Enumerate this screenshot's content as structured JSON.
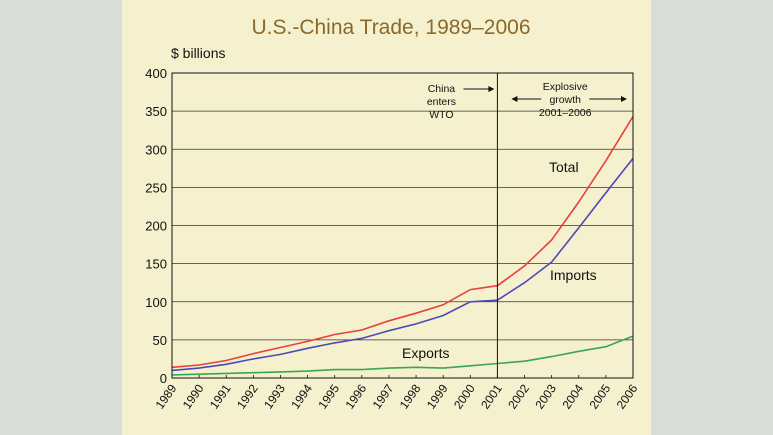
{
  "chart_data": {
    "type": "line",
    "title": "U.S.-China Trade, 1989–2006",
    "ylabel": "$ billions",
    "xlabel": "",
    "ylim": [
      0,
      400
    ],
    "yticks": [
      0,
      50,
      100,
      150,
      200,
      250,
      300,
      350,
      400
    ],
    "grid": true,
    "x": [
      1989,
      1990,
      1991,
      1992,
      1993,
      1994,
      1995,
      1996,
      1997,
      1998,
      1999,
      2000,
      2001,
      2002,
      2003,
      2004,
      2005,
      2006
    ],
    "series": [
      {
        "name": "Total",
        "color": "#e8403a",
        "values": [
          14,
          17,
          23,
          32,
          40,
          48,
          57,
          63,
          75,
          85,
          96,
          116,
          121,
          147,
          181,
          231,
          285,
          343
        ]
      },
      {
        "name": "Imports",
        "color": "#4a4ab8",
        "values": [
          10,
          13,
          18,
          25,
          31,
          39,
          46,
          52,
          62,
          71,
          82,
          100,
          102,
          125,
          152,
          197,
          243,
          288
        ]
      },
      {
        "name": "Exports",
        "color": "#3aa653",
        "values": [
          4,
          5,
          6,
          7,
          8,
          9,
          11,
          11,
          13,
          14,
          13,
          16,
          19,
          22,
          28,
          35,
          41,
          55
        ]
      }
    ],
    "annotations": [
      {
        "lines": [
          "China",
          "enters",
          "WTO"
        ],
        "year": 2001
      },
      {
        "lines": [
          "Explosive",
          "growth",
          "2001–2006"
        ],
        "from": 2001,
        "to": 2006
      }
    ]
  }
}
